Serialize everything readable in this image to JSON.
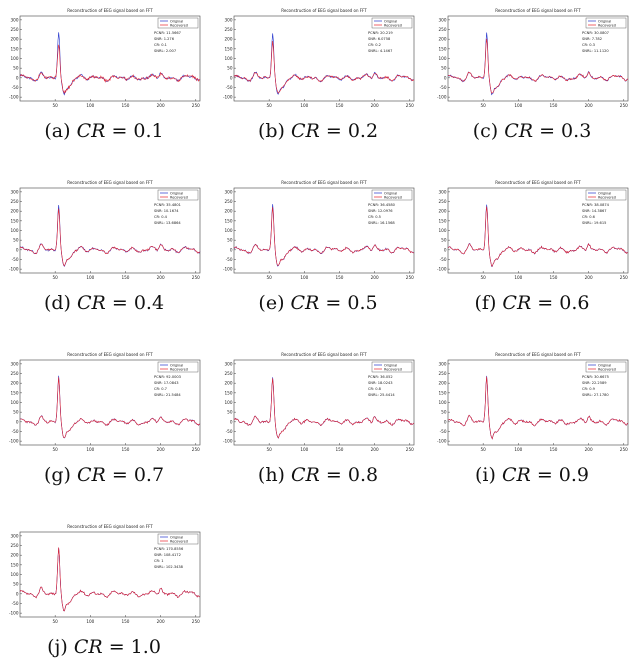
{
  "chart_data": [
    {
      "type": "line",
      "id": "a",
      "title": "Reconstruction of EEG signal based on FFT",
      "legend": [
        "Original",
        "Recovered"
      ],
      "legend_position": "top-right",
      "stats": [
        "PCNR: 11.5667",
        "SNR: 1.276",
        "CR: 0.1",
        "SNRL: 2.007"
      ],
      "xticks": [
        "50",
        "100",
        "150",
        "200",
        "250"
      ],
      "yticks": [
        "300",
        "250",
        "200",
        "150",
        "100",
        "50",
        "0",
        "-50",
        "-100"
      ],
      "xlim": [
        0,
        256
      ],
      "ylim": [
        -120,
        320
      ],
      "caption_prefix": "(a)",
      "caption_cr": "CR",
      "caption_eq": "= 0.1",
      "seed": 3,
      "dev": 1.0
    },
    {
      "type": "line",
      "id": "b",
      "title": "Reconstruction of EEG signal based on FFT",
      "legend": [
        "Original",
        "Recovered"
      ],
      "legend_position": "top-right",
      "stats": [
        "PCNR: 20.219",
        "SNR: 6.0758",
        "CR: 0.2",
        "SNRL: 4.1467"
      ],
      "xticks": [
        "50",
        "100",
        "150",
        "200",
        "250"
      ],
      "yticks": [
        "300",
        "250",
        "200",
        "150",
        "100",
        "50",
        "0",
        "-50",
        "-100"
      ],
      "xlim": [
        0,
        256
      ],
      "ylim": [
        -120,
        320
      ],
      "caption_prefix": "(b)",
      "caption_cr": "CR",
      "caption_eq": "= 0.2",
      "seed": 7,
      "dev": 0.7
    },
    {
      "type": "line",
      "id": "c",
      "title": "Reconstruction of EEG signal based on FFT",
      "legend": [
        "Original",
        "Recovered"
      ],
      "legend_position": "top-right",
      "stats": [
        "PCNR: 30.0807",
        "SNR: 7.782",
        "CR: 0.3",
        "SNRL: 11.1120"
      ],
      "xticks": [
        "50",
        "100",
        "150",
        "200",
        "250"
      ],
      "yticks": [
        "300",
        "250",
        "200",
        "150",
        "100",
        "50",
        "0",
        "-50",
        "-100"
      ],
      "xlim": [
        0,
        256
      ],
      "ylim": [
        -120,
        320
      ],
      "caption_prefix": "(c)",
      "caption_cr": "CR",
      "caption_eq": "= 0.3",
      "seed": 11,
      "dev": 0.5
    },
    {
      "type": "line",
      "id": "d",
      "title": "Reconstruction of EEG signal based on FFT",
      "legend": [
        "Original",
        "Recovered"
      ],
      "legend_position": "top-right",
      "stats": [
        "PCNR: 35.4801",
        "SNR: 10.1674",
        "CR: 0.4",
        "SNRL: 13.6864"
      ],
      "xticks": [
        "50",
        "100",
        "150",
        "200",
        "250"
      ],
      "yticks": [
        "300",
        "250",
        "200",
        "150",
        "100",
        "50",
        "0",
        "-50",
        "-100"
      ],
      "xlim": [
        0,
        256
      ],
      "ylim": [
        -120,
        320
      ],
      "caption_prefix": "(d)",
      "caption_cr": "CR",
      "caption_eq": "= 0.4",
      "seed": 13,
      "dev": 0.35
    },
    {
      "type": "line",
      "id": "e",
      "title": "Reconstruction of EEG signal based on FFT",
      "legend": [
        "Original",
        "Recovered"
      ],
      "legend_position": "top-right",
      "stats": [
        "PCNR: 36.4580",
        "SNR: 12.0976",
        "CR: 0.5",
        "SNRL: 16.1568"
      ],
      "xticks": [
        "50",
        "100",
        "150",
        "200",
        "250"
      ],
      "yticks": [
        "300",
        "250",
        "200",
        "150",
        "100",
        "50",
        "0",
        "-50",
        "-100"
      ],
      "xlim": [
        0,
        256
      ],
      "ylim": [
        -120,
        320
      ],
      "caption_prefix": "(e)",
      "caption_cr": "CR",
      "caption_eq": "= 0.5",
      "seed": 17,
      "dev": 0.25
    },
    {
      "type": "line",
      "id": "f",
      "title": "Reconstruction of EEG signal based on FFT",
      "legend": [
        "Original",
        "Recovered"
      ],
      "legend_position": "top-right",
      "stats": [
        "PCNR: 38.0874",
        "SNR: 14.3867",
        "CR: 0.6",
        "SNRL: 19.615"
      ],
      "xticks": [
        "50",
        "100",
        "150",
        "200",
        "250"
      ],
      "yticks": [
        "300",
        "250",
        "200",
        "150",
        "100",
        "50",
        "0",
        "-50",
        "-100"
      ],
      "xlim": [
        0,
        256
      ],
      "ylim": [
        -120,
        320
      ],
      "caption_prefix": "(f)",
      "caption_cr": "CR",
      "caption_eq": "= 0.6",
      "seed": 19,
      "dev": 0.18
    },
    {
      "type": "line",
      "id": "g",
      "title": "Reconstruction of EEG signal based on FFT",
      "legend": [
        "Original",
        "Recovered"
      ],
      "legend_position": "top-right",
      "stats": [
        "PCNR: 92.0003",
        "SNR: 17.0843",
        "CR: 0.7",
        "SNRL: 21.5484"
      ],
      "xticks": [
        "50",
        "100",
        "150",
        "200",
        "250"
      ],
      "yticks": [
        "300",
        "250",
        "200",
        "150",
        "100",
        "50",
        "0",
        "-50",
        "-100"
      ],
      "xlim": [
        0,
        256
      ],
      "ylim": [
        -120,
        320
      ],
      "caption_prefix": "(g)",
      "caption_cr": "CR",
      "caption_eq": "= 0.7",
      "seed": 23,
      "dev": 0.13
    },
    {
      "type": "line",
      "id": "h",
      "title": "Reconstruction of EEG signal based on FFT",
      "legend": [
        "Original",
        "Recovered"
      ],
      "legend_position": "top-right",
      "stats": [
        "PCNR: 36.052",
        "SNR: 18.0243",
        "CR: 0.8",
        "SNRL: 25.4414"
      ],
      "xticks": [
        "50",
        "100",
        "150",
        "200",
        "250"
      ],
      "yticks": [
        "300",
        "250",
        "200",
        "150",
        "100",
        "50",
        "0",
        "-50",
        "-100"
      ],
      "xlim": [
        0,
        256
      ],
      "ylim": [
        -120,
        320
      ],
      "caption_prefix": "(h)",
      "caption_cr": "CR",
      "caption_eq": "= 0.8",
      "seed": 29,
      "dev": 0.09
    },
    {
      "type": "line",
      "id": "i",
      "title": "Reconstruction of EEG signal based on FFT",
      "legend": [
        "Original",
        "Recovered"
      ],
      "legend_position": "top-right",
      "stats": [
        "PCNR: 30.6675",
        "SNR: 22.2589",
        "CR: 0.9",
        "SNRL: 27.1780"
      ],
      "xticks": [
        "50",
        "100",
        "150",
        "200",
        "250"
      ],
      "yticks": [
        "300",
        "250",
        "200",
        "150",
        "100",
        "50",
        "0",
        "-50",
        "-100"
      ],
      "xlim": [
        0,
        256
      ],
      "ylim": [
        -120,
        320
      ],
      "caption_prefix": "(i)",
      "caption_cr": "CR",
      "caption_eq": "= 0.9",
      "seed": 31,
      "dev": 0.06
    },
    {
      "type": "line",
      "id": "j",
      "title": "Reconstruction of EEG signal based on FFT",
      "legend": [
        "Original",
        "Recovered"
      ],
      "legend_position": "top-right",
      "stats": [
        "PCNR: 170.8556",
        "SNR: 108.4172",
        "CR: 1",
        "SNRL: 102.3438"
      ],
      "xticks": [
        "50",
        "100",
        "150",
        "200",
        "250"
      ],
      "yticks": [
        "300",
        "250",
        "200",
        "150",
        "100",
        "50",
        "0",
        "-50",
        "-100"
      ],
      "xlim": [
        0,
        256
      ],
      "ylim": [
        -120,
        320
      ],
      "caption_prefix": "(j)",
      "caption_cr": "CR",
      "caption_eq": "= 1.0",
      "seed": 37,
      "dev": 0.0
    }
  ],
  "colors": {
    "original": "#2233cc",
    "recovered": "#e8242c",
    "axis": "#444444",
    "text": "#222222"
  }
}
